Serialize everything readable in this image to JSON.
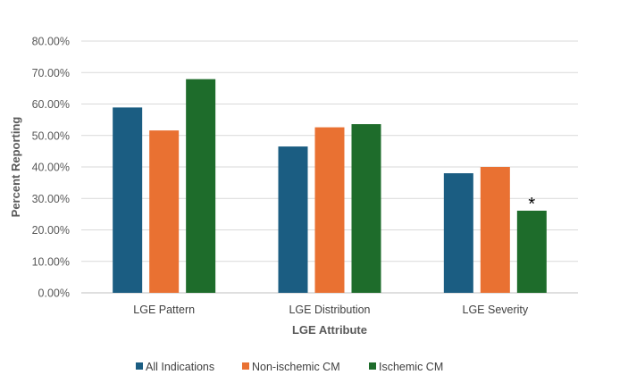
{
  "chart_data": {
    "type": "bar",
    "title": "",
    "xlabel": "LGE Attribute",
    "ylabel": "Percent Reporting",
    "categories": [
      "LGE Pattern",
      "LGE Distribution",
      "LGE Severity"
    ],
    "series": [
      {
        "name": "All Indications",
        "color": "#1b5d82",
        "values": [
          58.9,
          46.5,
          38.0
        ]
      },
      {
        "name": "Non-ischemic CM",
        "color": "#e97132",
        "values": [
          51.6,
          52.6,
          40.0
        ]
      },
      {
        "name": "Ischemic CM",
        "color": "#1e6c2b",
        "values": [
          67.9,
          53.6,
          26.1
        ]
      }
    ],
    "ylim": [
      0,
      80
    ],
    "yticks": [
      0,
      10,
      20,
      30,
      40,
      50,
      60,
      70,
      80
    ],
    "ytick_labels": [
      "0.00%",
      "10.00%",
      "20.00%",
      "30.00%",
      "40.00%",
      "50.00%",
      "60.00%",
      "70.00%",
      "80.00%"
    ],
    "grid": true,
    "gridline_color": "#d9d9d9",
    "legend_position": "bottom",
    "annotations": [
      {
        "text": "*",
        "category": "LGE Severity",
        "series": "Ischemic CM"
      }
    ]
  }
}
